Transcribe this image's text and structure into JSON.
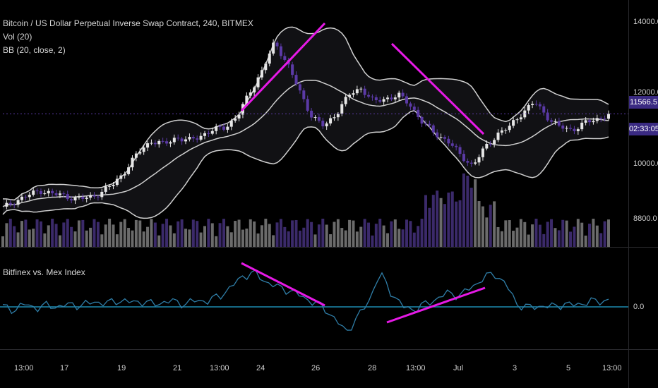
{
  "header": {
    "title": "Bitcoin / US Dollar Perpetual Inverse Swap Contract, 240, BITMEX",
    "indicators": [
      "Vol (20)",
      "BB (20, close, 2)"
    ]
  },
  "oscillator": {
    "title": "Bitfinex vs. Mex Index",
    "zero_label": "0.0"
  },
  "price_axis": {
    "ticks": [
      "14000.0",
      "12000.0",
      "10000.0",
      "8800.0"
    ],
    "last_price": "11566.5",
    "countdown": "02:33:05"
  },
  "time_axis": {
    "ticks": [
      "13:00",
      "17",
      "19",
      "21",
      "13:00",
      "24",
      "26",
      "28",
      "13:00",
      "Jul",
      "3",
      "5",
      "13:00"
    ]
  },
  "colors": {
    "background": "#000000",
    "candle_up": "#e6e6e6",
    "candle_down": "#5b3aa6",
    "band": "#d0d0d0",
    "trendline": "#e619e6",
    "osc_line": "#2f7ea8",
    "zero_line": "#1d8bb0",
    "last_price_tag": "#3a2a82"
  },
  "chart_data": [
    {
      "type": "candlestick",
      "title": "Bitcoin / US Dollar Perpetual Inverse Swap Contract, 240, BITMEX",
      "ylim": [
        8000,
        14500
      ],
      "x": [
        "16 13:00",
        "17",
        "19",
        "21",
        "22 13:00",
        "24",
        "26",
        "28",
        "29 13:00",
        "Jul 1",
        "3",
        "5",
        "6 13:00"
      ],
      "close_path": [
        8900,
        9100,
        9250,
        9400,
        9300,
        9250,
        9150,
        9200,
        9350,
        9600,
        10000,
        10500,
        10800,
        10700,
        10900,
        10800,
        10950,
        11100,
        11200,
        11500,
        12200,
        12800,
        13600,
        13000,
        12200,
        11500,
        11200,
        11600,
        12100,
        12300,
        11900,
        12000,
        12100,
        11800,
        11300,
        11000,
        10800,
        10400,
        10100,
        10600,
        11000,
        11200,
        11600,
        11900,
        11500,
        11200,
        11100,
        11300,
        11400,
        11566.5
      ],
      "last": 11566.5,
      "volume_note": "Vol (20) bars along bottom of price pane",
      "bollinger": "BB (20, close, 2)"
    },
    {
      "type": "line",
      "title": "Bitfinex vs. Mex Index",
      "ylim": [
        -1,
        1
      ],
      "zero": 0.0,
      "values": [
        0.0,
        -0.05,
        0.05,
        -0.02,
        0.03,
        0.0,
        0.05,
        0.02,
        0.1,
        0.05,
        0.12,
        0.08,
        0.1,
        0.05,
        0.08,
        0.1,
        0.05,
        0.12,
        0.1,
        0.2,
        0.35,
        0.55,
        0.6,
        0.45,
        0.35,
        0.3,
        0.2,
        0.1,
        0.0,
        -0.2,
        -0.45,
        -0.2,
        0.1,
        0.6,
        0.25,
        0.0,
        -0.05,
        0.05,
        0.15,
        0.25,
        0.2,
        0.35,
        0.5,
        0.6,
        0.4,
        0.05,
        -0.02,
        0.02,
        0.0,
        0.05,
        0.03,
        0.08,
        0.1,
        0.12
      ]
    }
  ]
}
